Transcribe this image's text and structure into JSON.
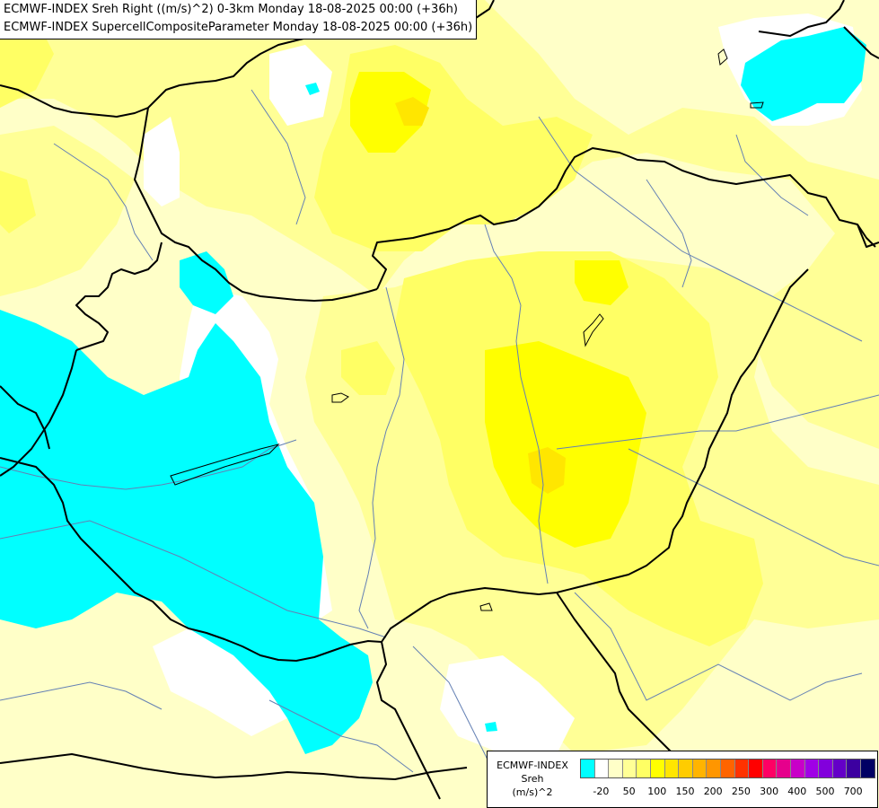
{
  "title": {
    "line1": "ECMWF-INDEX Sreh Right ((m/s)^2) 0-3km Monday 18-08-2025 00:00 (+36h)",
    "line2": "ECMWF-INDEX SupercellCompositeParameter Monday 18-08-2025 00:00 (+36h)"
  },
  "legend": {
    "title_lines": [
      "ECMWF-INDEX",
      "Sreh",
      "(m/s)^2"
    ],
    "colors": [
      "#00ffff",
      "#ffffff",
      "#ffffc8",
      "#ffff96",
      "#ffff64",
      "#ffff00",
      "#ffe600",
      "#ffcc00",
      "#ffb400",
      "#ff9600",
      "#ff6400",
      "#ff3200",
      "#ff0000",
      "#ff0064",
      "#e6008c",
      "#c800c8",
      "#a000e6",
      "#8200dc",
      "#6400c8",
      "#3c00a0",
      "#000064"
    ],
    "tick_labels": [
      "-20",
      "50",
      "100",
      "150",
      "200",
      "250",
      "300",
      "400",
      "500",
      "700"
    ]
  },
  "colors": {
    "cyan": "#00ffff",
    "white": "#ffffff",
    "pale_yellow": "#ffffc8",
    "light_yellow": "#ffff96",
    "yellow": "#ffff64",
    "bright_yellow": "#ffff00",
    "gold": "#ffe600",
    "orange_yellow": "#ffcc00",
    "border": "#000000",
    "river": "#6480b4"
  }
}
